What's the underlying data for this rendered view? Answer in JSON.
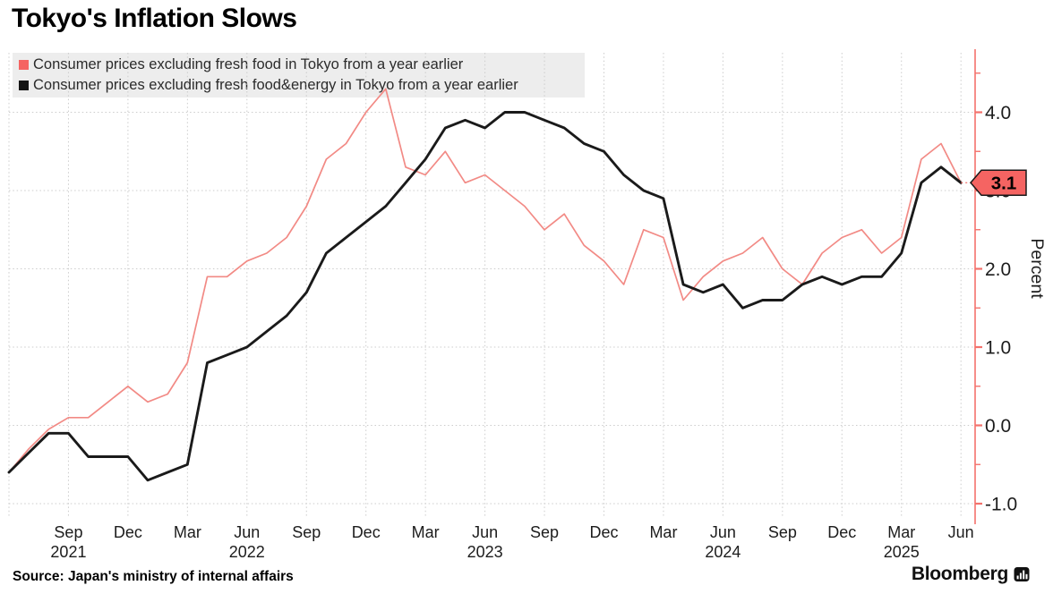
{
  "title": "Tokyo's Inflation Slows",
  "legend": {
    "items": [
      {
        "label": "Consumer prices excluding fresh food in Tokyo from a year earlier",
        "color": "#f56462"
      },
      {
        "label": "Consumer prices excluding fresh food&energy in Tokyo from a year earlier",
        "color": "#141414"
      }
    ]
  },
  "source": "Source: Japan's ministry of internal affairs",
  "brand": "Bloomberg",
  "colors": {
    "red_line": "#f28a85",
    "red_axis": "#f3726c",
    "tag_fill": "#f56462",
    "black_line": "#1a1a1a",
    "grid": "#cccccc",
    "tick_text": "#1c1c1c"
  },
  "chart_data": {
    "type": "line",
    "x_start": "Jun 2021",
    "x_end": "Jun 2025",
    "months_per_point": 1,
    "ylabel": "Percent",
    "ylim": [
      -1.3,
      4.6
    ],
    "grid": true,
    "legend_position": "top-left",
    "y_ticks": [
      {
        "v": 4.0,
        "label": "4.0"
      },
      {
        "v": 3.0,
        "label": "3.0"
      },
      {
        "v": 2.0,
        "label": "2.0"
      },
      {
        "v": 1.0,
        "label": "1.0"
      },
      {
        "v": 0.0,
        "label": "0.0"
      },
      {
        "v": -1.0,
        "label": "-1.0"
      }
    ],
    "y_minor_ticks": [
      4.5,
      3.5,
      2.5,
      1.5,
      0.5,
      -0.5
    ],
    "x_ticks": [
      {
        "label": "Sep",
        "year": "2021"
      },
      {
        "label": "Dec"
      },
      {
        "label": "Mar"
      },
      {
        "label": "Jun",
        "year": "2022"
      },
      {
        "label": "Sep"
      },
      {
        "label": "Dec"
      },
      {
        "label": "Mar"
      },
      {
        "label": "Jun",
        "year": "2023"
      },
      {
        "label": "Sep"
      },
      {
        "label": "Dec"
      },
      {
        "label": "Mar"
      },
      {
        "label": "Jun",
        "year": "2024"
      },
      {
        "label": "Sep"
      },
      {
        "label": "Dec"
      },
      {
        "label": "Mar",
        "year": "2025"
      },
      {
        "label": "Jun"
      }
    ],
    "series": [
      {
        "name": "Consumer prices excluding fresh food in Tokyo from a year earlier",
        "color": "#f28a85",
        "width": 1.7,
        "values": [
          -0.6,
          -0.3,
          -0.05,
          0.1,
          0.1,
          0.3,
          0.5,
          0.3,
          0.4,
          0.8,
          1.9,
          1.9,
          2.1,
          2.2,
          2.4,
          2.8,
          3.4,
          3.6,
          4.0,
          4.3,
          3.3,
          3.2,
          3.5,
          3.1,
          3.2,
          3.0,
          2.8,
          2.5,
          2.7,
          2.3,
          2.1,
          1.8,
          2.5,
          2.4,
          1.6,
          1.9,
          2.1,
          2.2,
          2.4,
          2.0,
          1.8,
          2.2,
          2.4,
          2.5,
          2.2,
          2.4,
          3.4,
          3.6,
          3.1
        ]
      },
      {
        "name": "Consumer prices excluding fresh food&energy in Tokyo from a year earlier",
        "color": "#1a1a1a",
        "width": 2.9,
        "values": [
          -0.6,
          -0.35,
          -0.1,
          -0.1,
          -0.4,
          -0.4,
          -0.4,
          -0.7,
          -0.6,
          -0.5,
          0.8,
          0.9,
          1.0,
          1.2,
          1.4,
          1.7,
          2.2,
          2.4,
          2.6,
          2.8,
          3.1,
          3.4,
          3.8,
          3.9,
          3.8,
          4.0,
          4.0,
          3.9,
          3.8,
          3.6,
          3.5,
          3.2,
          3.0,
          2.9,
          1.8,
          1.7,
          1.8,
          1.5,
          1.6,
          1.6,
          1.8,
          1.9,
          1.8,
          1.9,
          1.9,
          2.2,
          3.1,
          3.3,
          3.1
        ]
      }
    ],
    "end_label": {
      "text": "3.1",
      "value": 3.1
    }
  }
}
